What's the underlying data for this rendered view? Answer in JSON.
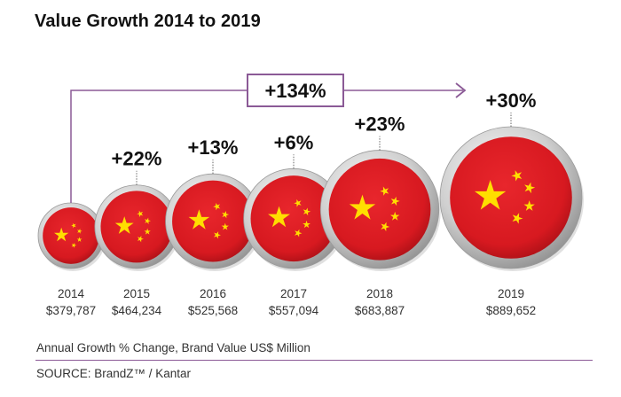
{
  "title": "Value Growth 2014 to 2019",
  "caption": "Annual Growth % Change, Brand Value US$ Million",
  "source": "SOURCE: BrandZ™ / Kantar",
  "colors": {
    "flag_red": "#d71920",
    "star_yellow": "#ffde00",
    "accent_purple": "#8b5a96",
    "coin_rim": "#c8c8c8"
  },
  "chart_data": {
    "type": "bubble",
    "title": "Value Growth 2014 to 2019",
    "x": [
      "2014",
      "2015",
      "2016",
      "2017",
      "2018",
      "2019"
    ],
    "values": [
      379787,
      464234,
      525568,
      557094,
      683887,
      889652
    ],
    "value_labels": [
      "$379,787",
      "$464,234",
      "$525,568",
      "$557,094",
      "$683,887",
      "$889,652"
    ],
    "growth_labels": [
      "",
      "+22%",
      "+13%",
      "+6%",
      "+23%",
      "+30%"
    ],
    "total_growth_label": "+134%",
    "unit": "Brand Value US$ Million"
  }
}
